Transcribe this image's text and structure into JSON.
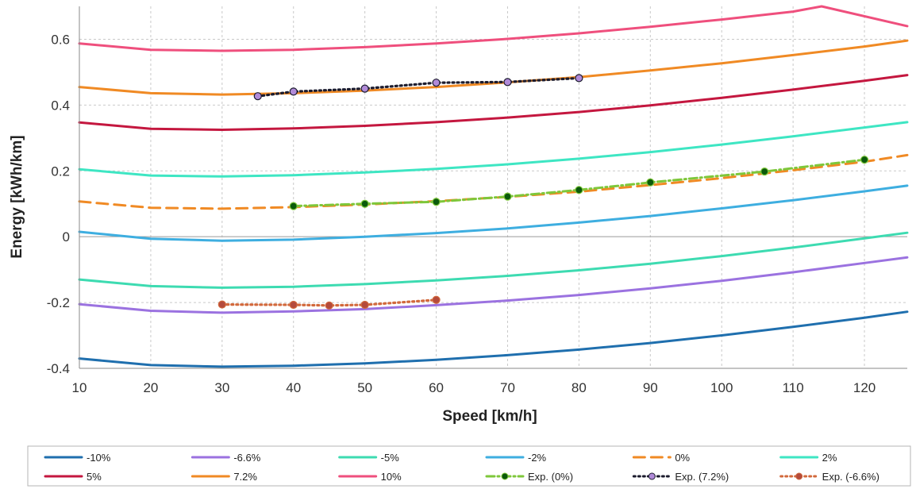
{
  "chart_data": {
    "type": "line",
    "xlabel": "Speed [km/h]",
    "ylabel": "Energy [kWh/km]",
    "xlim": [
      10,
      126
    ],
    "ylim": [
      -0.4,
      0.7
    ],
    "x_ticks": [
      10,
      20,
      30,
      40,
      50,
      60,
      70,
      80,
      90,
      100,
      110,
      120
    ],
    "y_ticks": [
      -0.4,
      -0.2,
      0,
      0.2,
      0.4,
      0.6
    ],
    "y_tick_labels": [
      "-0.4",
      "-0.2",
      "0",
      "0.2",
      "0.4",
      "0.6"
    ],
    "grid": true,
    "legend_position": "bottom",
    "series": [
      {
        "name": "-10%",
        "color": "#1f6fae",
        "style": "solid",
        "marker": "none",
        "points": [
          [
            10,
            -0.37
          ],
          [
            20,
            -0.39
          ],
          [
            30,
            -0.395
          ],
          [
            40,
            -0.392
          ],
          [
            50,
            -0.385
          ],
          [
            60,
            -0.374
          ],
          [
            70,
            -0.36
          ],
          [
            80,
            -0.343
          ],
          [
            90,
            -0.323
          ],
          [
            100,
            -0.3
          ],
          [
            110,
            -0.274
          ],
          [
            120,
            -0.246
          ],
          [
            126,
            -0.228
          ]
        ]
      },
      {
        "name": "-6.6%",
        "color": "#9b72e0",
        "style": "solid",
        "marker": "none",
        "points": [
          [
            10,
            -0.205
          ],
          [
            20,
            -0.225
          ],
          [
            30,
            -0.231
          ],
          [
            40,
            -0.227
          ],
          [
            50,
            -0.22
          ],
          [
            60,
            -0.208
          ],
          [
            70,
            -0.194
          ],
          [
            80,
            -0.177
          ],
          [
            90,
            -0.157
          ],
          [
            100,
            -0.134
          ],
          [
            110,
            -0.108
          ],
          [
            120,
            -0.08
          ],
          [
            126,
            -0.063
          ]
        ]
      },
      {
        "name": "-5%",
        "color": "#3ddbb1",
        "style": "solid",
        "marker": "none",
        "points": [
          [
            10,
            -0.13
          ],
          [
            20,
            -0.15
          ],
          [
            30,
            -0.155
          ],
          [
            40,
            -0.152
          ],
          [
            50,
            -0.144
          ],
          [
            60,
            -0.133
          ],
          [
            70,
            -0.119
          ],
          [
            80,
            -0.102
          ],
          [
            90,
            -0.082
          ],
          [
            100,
            -0.059
          ],
          [
            110,
            -0.033
          ],
          [
            120,
            -0.005
          ],
          [
            126,
            0.012
          ]
        ]
      },
      {
        "name": "-2%",
        "color": "#3eaee0",
        "style": "solid",
        "marker": "none",
        "points": [
          [
            10,
            0.015
          ],
          [
            20,
            -0.006
          ],
          [
            30,
            -0.012
          ],
          [
            40,
            -0.009
          ],
          [
            50,
            0.0
          ],
          [
            60,
            0.011
          ],
          [
            70,
            0.025
          ],
          [
            80,
            0.043
          ],
          [
            90,
            0.063
          ],
          [
            100,
            0.086
          ],
          [
            110,
            0.111
          ],
          [
            120,
            0.138
          ],
          [
            126,
            0.155
          ]
        ]
      },
      {
        "name": "0%",
        "color": "#f08a24",
        "style": "dashed",
        "marker": "none",
        "points": [
          [
            10,
            0.107
          ],
          [
            20,
            0.088
          ],
          [
            30,
            0.085
          ],
          [
            40,
            0.09
          ],
          [
            50,
            0.098
          ],
          [
            60,
            0.108
          ],
          [
            70,
            0.121
          ],
          [
            80,
            0.137
          ],
          [
            90,
            0.157
          ],
          [
            100,
            0.178
          ],
          [
            110,
            0.202
          ],
          [
            120,
            0.228
          ],
          [
            126,
            0.248
          ]
        ]
      },
      {
        "name": "2%",
        "color": "#3ee6c3",
        "style": "solid",
        "marker": "none",
        "points": [
          [
            10,
            0.205
          ],
          [
            20,
            0.186
          ],
          [
            30,
            0.183
          ],
          [
            40,
            0.187
          ],
          [
            50,
            0.195
          ],
          [
            60,
            0.206
          ],
          [
            70,
            0.22
          ],
          [
            80,
            0.237
          ],
          [
            90,
            0.257
          ],
          [
            100,
            0.28
          ],
          [
            110,
            0.305
          ],
          [
            120,
            0.332
          ],
          [
            126,
            0.348
          ]
        ]
      },
      {
        "name": "5%",
        "color": "#c4173f",
        "style": "solid",
        "marker": "none",
        "points": [
          [
            10,
            0.347
          ],
          [
            20,
            0.328
          ],
          [
            30,
            0.325
          ],
          [
            40,
            0.329
          ],
          [
            50,
            0.337
          ],
          [
            60,
            0.348
          ],
          [
            70,
            0.362
          ],
          [
            80,
            0.379
          ],
          [
            90,
            0.399
          ],
          [
            100,
            0.422
          ],
          [
            110,
            0.447
          ],
          [
            120,
            0.474
          ],
          [
            126,
            0.491
          ]
        ]
      },
      {
        "name": "7.2%",
        "color": "#f08a24",
        "style": "solid",
        "marker": "none",
        "points": [
          [
            10,
            0.455
          ],
          [
            20,
            0.436
          ],
          [
            30,
            0.432
          ],
          [
            40,
            0.436
          ],
          [
            50,
            0.444
          ],
          [
            60,
            0.455
          ],
          [
            70,
            0.469
          ],
          [
            80,
            0.485
          ],
          [
            90,
            0.505
          ],
          [
            100,
            0.527
          ],
          [
            110,
            0.552
          ],
          [
            120,
            0.578
          ],
          [
            126,
            0.596
          ]
        ]
      },
      {
        "name": "10%",
        "color": "#ef4f7d",
        "style": "solid",
        "marker": "none",
        "points": [
          [
            10,
            0.587
          ],
          [
            20,
            0.568
          ],
          [
            30,
            0.565
          ],
          [
            40,
            0.568
          ],
          [
            50,
            0.576
          ],
          [
            60,
            0.587
          ],
          [
            70,
            0.601
          ],
          [
            80,
            0.618
          ],
          [
            90,
            0.638
          ],
          [
            100,
            0.66
          ],
          [
            110,
            0.684
          ],
          [
            114,
            0.7
          ],
          [
            126,
            0.64
          ]
        ]
      },
      {
        "name": "Exp. (0%)",
        "color": "#7ec73a",
        "style": "dashdot",
        "marker": "circle",
        "marker_fill": "#0b5a0b",
        "points": [
          [
            40,
            0.093
          ],
          [
            50,
            0.1
          ],
          [
            60,
            0.106
          ],
          [
            70,
            0.122
          ],
          [
            80,
            0.142
          ],
          [
            90,
            0.165
          ],
          [
            106,
            0.198
          ],
          [
            120,
            0.234
          ]
        ]
      },
      {
        "name": "Exp. (7.2%)",
        "color": "#1c1c2e",
        "style": "dotted",
        "marker": "circle",
        "marker_fill": "#b08ad8",
        "points": [
          [
            35,
            0.427
          ],
          [
            40,
            0.441
          ],
          [
            50,
            0.45
          ],
          [
            60,
            0.468
          ],
          [
            70,
            0.47
          ],
          [
            80,
            0.482
          ]
        ]
      },
      {
        "name": "Exp. (-6.6%)",
        "color": "#d2693c",
        "style": "dotted",
        "marker": "circle",
        "marker_fill": "#b44a3c",
        "points": [
          [
            30,
            -0.206
          ],
          [
            40,
            -0.207
          ],
          [
            45,
            -0.209
          ],
          [
            50,
            -0.207
          ],
          [
            60,
            -0.192
          ]
        ]
      }
    ]
  }
}
